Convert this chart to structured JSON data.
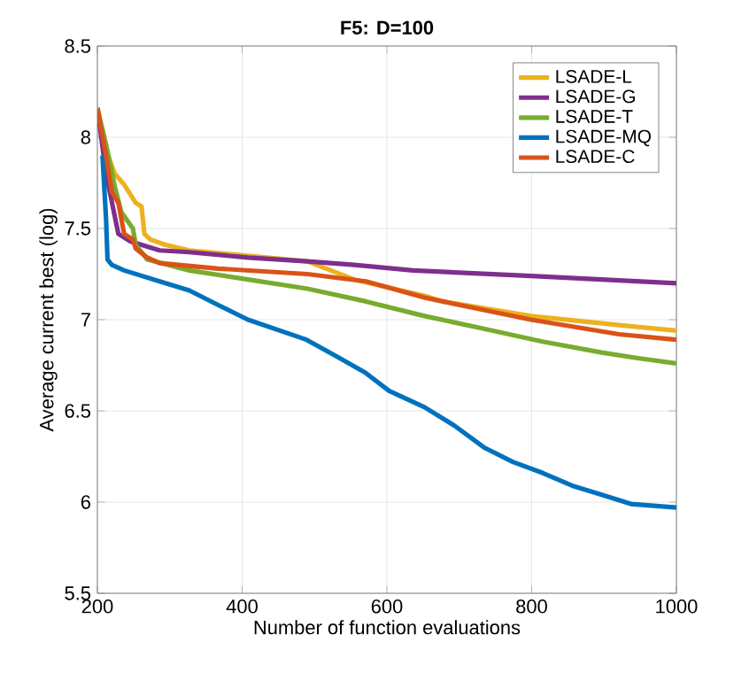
{
  "chart_data": {
    "type": "line",
    "title": "F5: D=100",
    "xlabel": "Number of function evaluations",
    "ylabel": "Average current best (log)",
    "xlim": [
      200,
      1000
    ],
    "ylim": [
      5.5,
      8.5
    ],
    "xticks": [
      200,
      400,
      600,
      800,
      1000
    ],
    "yticks": [
      5.5,
      6,
      6.5,
      7,
      7.5,
      8,
      8.5
    ],
    "grid": true,
    "legend": "top right",
    "marker": "none",
    "line_style": "solid",
    "series": [
      {
        "name": "LSADE-L",
        "color": "#edb120",
        "x": [
          200,
          212,
          224,
          237,
          253,
          261,
          265,
          273,
          294,
          327,
          408,
          490,
          555,
          653,
          677,
          799,
          921,
          1000
        ],
        "values": [
          8.16,
          7.93,
          7.8,
          7.74,
          7.64,
          7.62,
          7.47,
          7.44,
          7.41,
          7.38,
          7.35,
          7.32,
          7.22,
          7.13,
          7.1,
          7.02,
          6.97,
          6.94
        ]
      },
      {
        "name": "LSADE-G",
        "color": "#7e2f8e",
        "x": [
          200,
          212,
          229,
          245,
          286,
          327,
          408,
          490,
          555,
          636,
          799,
          1000
        ],
        "values": [
          8.16,
          7.8,
          7.47,
          7.43,
          7.38,
          7.37,
          7.34,
          7.32,
          7.3,
          7.27,
          7.24,
          7.2
        ]
      },
      {
        "name": "LSADE-T",
        "color": "#77ac30",
        "x": [
          200,
          212,
          224,
          233,
          249,
          253,
          269,
          327,
          408,
          490,
          571,
          652,
          734,
          815,
          897,
          945,
          1000
        ],
        "values": [
          8.16,
          7.96,
          7.73,
          7.59,
          7.5,
          7.41,
          7.33,
          7.27,
          7.22,
          7.17,
          7.1,
          7.02,
          6.95,
          6.88,
          6.82,
          6.79,
          6.76
        ]
      },
      {
        "name": "LSADE-MQ",
        "color": "#0072bd",
        "x": [
          207,
          212,
          214,
          220,
          237,
          286,
          327,
          367,
          408,
          489,
          530,
          570,
          603,
          652,
          693,
          734,
          774,
          815,
          856,
          897,
          937,
          1000
        ],
        "values": [
          7.9,
          7.55,
          7.33,
          7.3,
          7.27,
          7.21,
          7.16,
          7.08,
          7.0,
          6.89,
          6.8,
          6.71,
          6.61,
          6.52,
          6.42,
          6.3,
          6.22,
          6.16,
          6.09,
          6.04,
          5.99,
          5.97
        ]
      },
      {
        "name": "LSADE-C",
        "color": "#d95319",
        "x": [
          200,
          212,
          220,
          229,
          237,
          249,
          253,
          269,
          286,
          367,
          490,
          571,
          653,
          677,
          799,
          921,
          1000
        ],
        "values": [
          8.16,
          7.9,
          7.7,
          7.64,
          7.47,
          7.44,
          7.39,
          7.34,
          7.31,
          7.28,
          7.25,
          7.21,
          7.12,
          7.1,
          7.0,
          6.92,
          6.89
        ]
      }
    ]
  }
}
